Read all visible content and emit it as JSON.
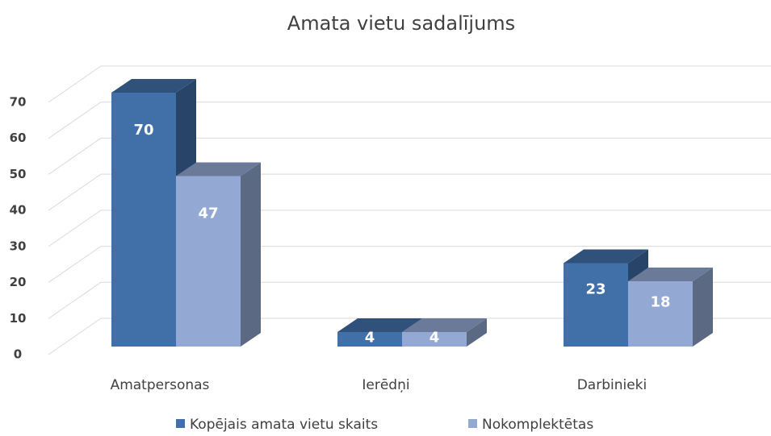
{
  "chart_data": {
    "type": "bar3d",
    "title": "Amata vietu sadalījums",
    "categories": [
      "Amatpersonas",
      "Ierēdņi",
      "Darbinieki"
    ],
    "series": [
      {
        "name": "Kopējais amata vietu skaits",
        "color": "#4170a9",
        "values": [
          70,
          4,
          23
        ]
      },
      {
        "name": "Nokomplektētas",
        "color": "#93a9d3",
        "values": [
          47,
          4,
          18
        ]
      }
    ],
    "ylim": [
      0,
      70
    ],
    "yticks": [
      0,
      10,
      20,
      30,
      40,
      50,
      60,
      70
    ],
    "grid": true,
    "legend": "bottom"
  }
}
